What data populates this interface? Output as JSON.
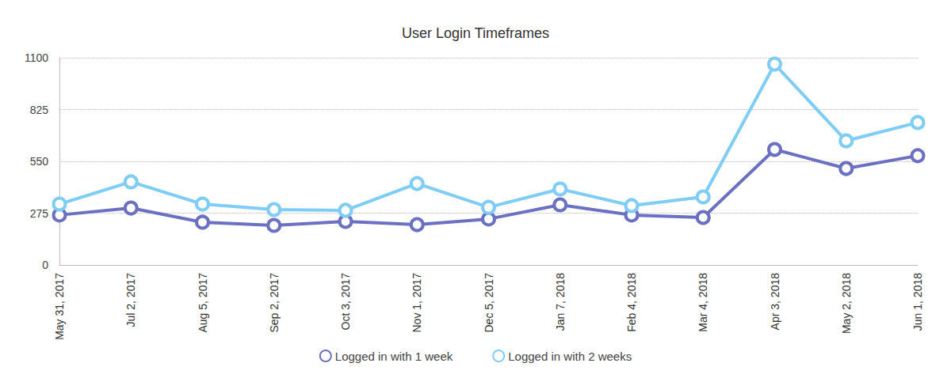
{
  "chart_data": {
    "type": "line",
    "title": "User Login Timeframes",
    "categories": [
      "May 31, 2017",
      "Jul 2, 2017",
      "Aug 5, 2017",
      "Sep 2, 2017",
      "Oct 3, 2017",
      "Nov 1, 2017",
      "Dec 5, 2017",
      "Jan 7, 2018",
      "Feb 4, 2018",
      "Mar 4, 2018",
      "Apr 3, 2018",
      "May 2, 2018",
      "Jun 1, 2018"
    ],
    "series": [
      {
        "name": "Logged in with 1 week",
        "color": "#6b70c2",
        "marker": "circle",
        "line_style": "solid",
        "values": [
          265,
          302,
          227,
          210,
          231,
          214,
          244,
          319,
          265,
          252,
          613,
          512,
          580
        ]
      },
      {
        "name": "Logged in with 2 weeks",
        "color": "#7dcdf6",
        "marker": "circle",
        "line_style": "solid",
        "values": [
          323,
          441,
          323,
          294,
          290,
          432,
          306,
          403,
          315,
          361,
          1066,
          659,
          756
        ]
      }
    ],
    "ylim": [
      0,
      1100
    ],
    "yticks": [
      0,
      275,
      550,
      825,
      1100
    ],
    "grid": true,
    "legend": "bottom"
  }
}
